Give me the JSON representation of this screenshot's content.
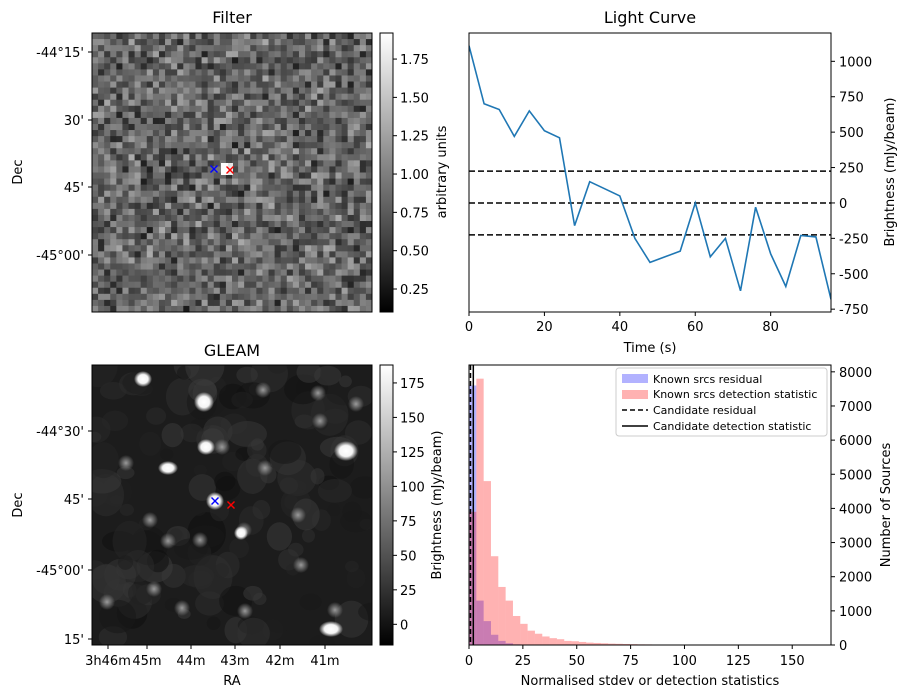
{
  "chart_data": [
    {
      "type": "heatmap",
      "title": "Filter",
      "xlabel": "",
      "ylabel": "Dec",
      "y_ticks": [
        "-44°15'",
        "30'",
        "45'",
        "-45°00'"
      ],
      "colorbar": {
        "label": "arbitrary units",
        "range": [
          0.1,
          1.92
        ],
        "ticks": [
          "0.25",
          "0.50",
          "0.75",
          "1.00",
          "1.25",
          "1.50",
          "1.75"
        ],
        "colormap": "gray"
      },
      "markers": [
        {
          "symbol": "x",
          "color": "#0000ff"
        },
        {
          "symbol": "x",
          "color": "#ff0000"
        }
      ]
    },
    {
      "type": "line",
      "title": "Light Curve",
      "xlabel": "Time (s)",
      "ylabel": "Brightness (mJy/beam)",
      "xlim": [
        0,
        96
      ],
      "ylim": [
        -770,
        1200
      ],
      "x_ticks": [
        "0",
        "20",
        "40",
        "60",
        "80"
      ],
      "y_ticks": [
        "-750",
        "-500",
        "-250",
        "0",
        "250",
        "500",
        "750",
        "1000"
      ],
      "series": [
        {
          "color": "#1f77b4",
          "x": [
            0,
            4,
            8,
            12,
            16,
            20,
            24,
            28,
            32,
            36,
            40,
            44,
            48,
            52,
            56,
            60,
            64,
            68,
            72,
            76,
            80,
            84,
            88,
            92,
            96
          ],
          "y": [
            1110,
            700,
            660,
            470,
            650,
            510,
            460,
            -160,
            150,
            100,
            50,
            -250,
            -420,
            -380,
            -340,
            0,
            -380,
            -250,
            -620,
            -30,
            -360,
            -590,
            -230,
            -240,
            -680
          ]
        }
      ],
      "hlines": [
        {
          "y": 225,
          "style": "dashed",
          "color": "#000000"
        },
        {
          "y": 0,
          "style": "dashed",
          "color": "#000000"
        },
        {
          "y": -225,
          "style": "dashed",
          "color": "#000000"
        }
      ]
    },
    {
      "type": "heatmap",
      "title": "GLEAM",
      "xlabel": "RA",
      "ylabel": "Dec",
      "x_ticks": [
        "3h46m",
        "45m",
        "44m",
        "43m",
        "42m",
        "41m"
      ],
      "y_ticks": [
        "-44°30'",
        "45'",
        "-45°00'",
        "15'"
      ],
      "colorbar": {
        "label": "Brightness (mJy/beam)",
        "range": [
          -15,
          188
        ],
        "ticks": [
          "0",
          "25",
          "50",
          "75",
          "100",
          "125",
          "150",
          "175"
        ],
        "colormap": "gray"
      },
      "markers": [
        {
          "symbol": "x",
          "color": "#0000ff"
        },
        {
          "symbol": "x",
          "color": "#ff0000"
        }
      ]
    },
    {
      "type": "bar",
      "title": "",
      "xlabel": "Normalised stdev or detection statistics",
      "ylabel": "Number of Sources",
      "xlim": [
        0,
        168
      ],
      "ylim": [
        0,
        8200
      ],
      "x_ticks": [
        "0",
        "25",
        "50",
        "75",
        "100",
        "125",
        "150"
      ],
      "y_ticks": [
        "0",
        "1000",
        "2000",
        "3000",
        "4000",
        "5000",
        "6000",
        "7000",
        "8000"
      ],
      "bin_width": 3.4,
      "legend_position": "top-right",
      "series": [
        {
          "name": "Known srcs residual",
          "color": "#0000ff",
          "alpha": 0.3,
          "bin_start": 0,
          "values": [
            7600,
            1300,
            700,
            300,
            120,
            50,
            20,
            10,
            5,
            2
          ]
        },
        {
          "name": "Known srcs detection statistic",
          "color": "#ff0000",
          "alpha": 0.3,
          "bin_start": 0,
          "values": [
            3900,
            7800,
            4800,
            2600,
            1700,
            1300,
            850,
            620,
            420,
            330,
            250,
            200,
            170,
            120,
            110,
            90,
            70,
            60,
            50,
            40,
            35,
            30,
            25,
            20,
            18,
            15,
            12,
            10,
            9,
            8,
            6,
            5,
            4,
            3,
            3,
            2,
            2,
            1,
            1,
            1
          ]
        }
      ],
      "vlines": [
        {
          "name": "Candidate residual",
          "x": 0.7,
          "style": "dashed",
          "color": "#000000"
        },
        {
          "name": "Candidate detection statistic",
          "x": 2.0,
          "style": "solid",
          "color": "#000000"
        }
      ]
    }
  ]
}
